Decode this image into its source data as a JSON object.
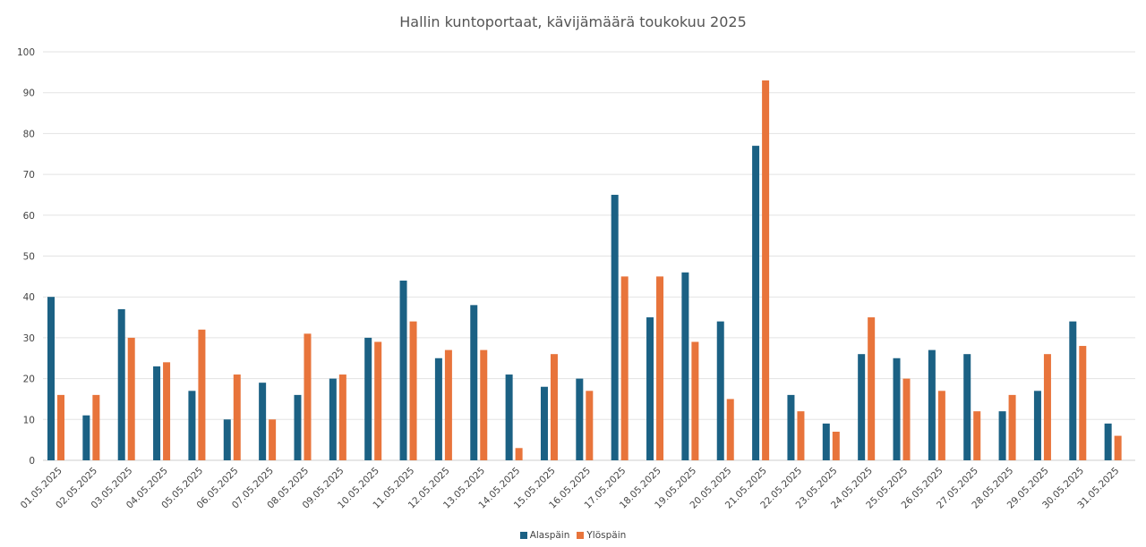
{
  "chart_data": {
    "type": "bar",
    "title": "Hallin kuntoportaat, kävijämäärä toukokuu 2025",
    "xlabel": "",
    "ylabel": "",
    "ylim": [
      0,
      100
    ],
    "yticks": [
      0,
      10,
      20,
      30,
      40,
      50,
      60,
      70,
      80,
      90,
      100
    ],
    "grid": true,
    "legend_position": "bottom",
    "categories": [
      "01.05.2025",
      "02.05.2025",
      "03.05.2025",
      "04.05.2025",
      "05.05.2025",
      "06.05.2025",
      "07.05.2025",
      "08.05.2025",
      "09.05.2025",
      "10.05.2025",
      "11.05.2025",
      "12.05.2025",
      "13.05.2025",
      "14.05.2025",
      "15.05.2025",
      "16.05.2025",
      "17.05.2025",
      "18.05.2025",
      "19.05.2025",
      "20.05.2025",
      "21.05.2025",
      "22.05.2025",
      "23.05.2025",
      "24.05.2025",
      "25.05.2025",
      "26.05.2025",
      "27.05.2025",
      "28.05.2025",
      "29.05.2025",
      "30.05.2025",
      "31.05.2025"
    ],
    "series": [
      {
        "name": "Alaspäin",
        "color": "#1b6184",
        "values": [
          40,
          11,
          37,
          23,
          17,
          10,
          19,
          16,
          20,
          30,
          44,
          25,
          38,
          21,
          18,
          20,
          65,
          35,
          46,
          34,
          77,
          16,
          9,
          26,
          25,
          27,
          26,
          12,
          17,
          34,
          9
        ]
      },
      {
        "name": "Ylöspäin",
        "color": "#e8743b",
        "values": [
          16,
          16,
          30,
          24,
          32,
          21,
          10,
          31,
          21,
          29,
          34,
          27,
          27,
          3,
          26,
          17,
          45,
          45,
          29,
          15,
          93,
          12,
          7,
          35,
          20,
          17,
          12,
          16,
          26,
          28,
          6
        ]
      }
    ]
  }
}
